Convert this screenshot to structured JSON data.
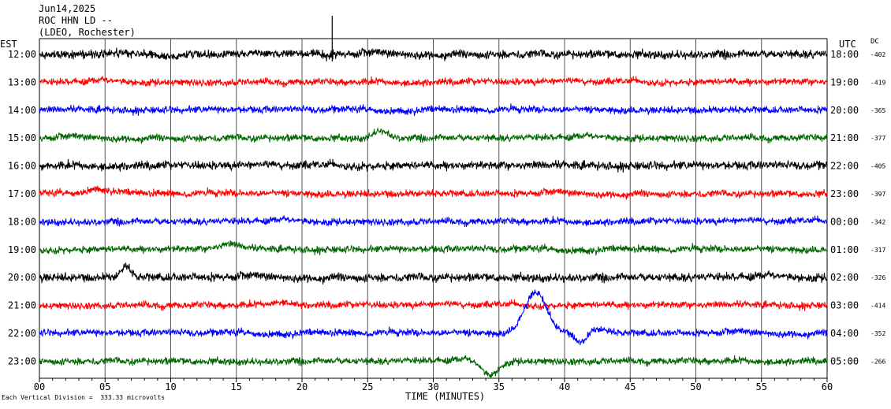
{
  "header": {
    "date": "Jun14,2025",
    "station": "ROC HHN LD --",
    "source": "(LDEO, Rochester)"
  },
  "labels": {
    "left_tz": "EST",
    "right_tz": "UTC",
    "dc": "DC",
    "footnote": "Each Vertical Division =  333.33 microvolts"
  },
  "chart_data": {
    "type": "line",
    "title": "",
    "xlabel": "TIME (MINUTES)",
    "ylabel": "",
    "xlim": [
      0,
      60
    ],
    "x_ticks": [
      "00",
      "05",
      "10",
      "15",
      "20",
      "25",
      "30",
      "35",
      "40",
      "45",
      "50",
      "55",
      "60"
    ],
    "grid": true,
    "colors": [
      "#000000",
      "#ff0000",
      "#0000ff",
      "#006400"
    ],
    "series": [
      {
        "left_label": "12:00",
        "right_label": "18:00",
        "dc": "-402",
        "color": "#000000"
      },
      {
        "left_label": "13:00",
        "right_label": "19:00",
        "dc": "-419",
        "color": "#ff0000"
      },
      {
        "left_label": "14:00",
        "right_label": "20:00",
        "dc": "-365",
        "color": "#0000ff"
      },
      {
        "left_label": "15:00",
        "right_label": "21:00",
        "dc": "-377",
        "color": "#006400"
      },
      {
        "left_label": "16:00",
        "right_label": "22:00",
        "dc": "-405",
        "color": "#000000"
      },
      {
        "left_label": "17:00",
        "right_label": "23:00",
        "dc": "-397",
        "color": "#ff0000"
      },
      {
        "left_label": "18:00",
        "right_label": "00:00",
        "dc": "-342",
        "color": "#0000ff"
      },
      {
        "left_label": "19:00",
        "right_label": "01:00",
        "dc": "-317",
        "color": "#006400"
      },
      {
        "left_label": "20:00",
        "right_label": "02:00",
        "dc": "-326",
        "color": "#000000"
      },
      {
        "left_label": "21:00",
        "right_label": "03:00",
        "dc": "-414",
        "color": "#ff0000"
      },
      {
        "left_label": "22:00",
        "right_label": "04:00",
        "dc": "-352",
        "color": "#0000ff"
      },
      {
        "left_label": "23:00",
        "right_label": "05:00",
        "dc": "-266",
        "color": "#006400"
      }
    ]
  }
}
